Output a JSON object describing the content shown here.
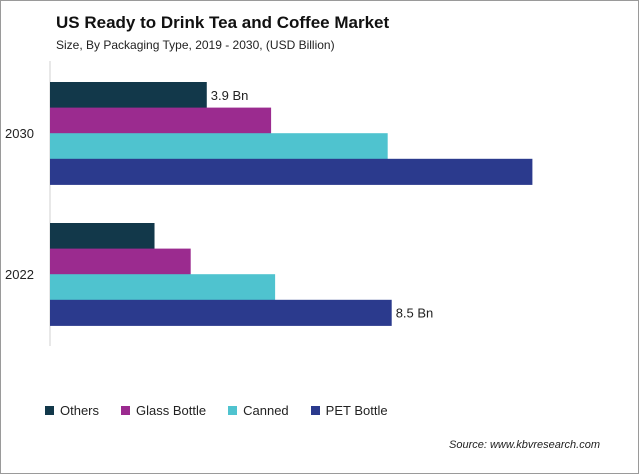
{
  "title": "US Ready to Drink Tea and Coffee  Market",
  "subtitle": "Size, By Packaging Type, 2019 - 2030, (USD Billion)",
  "source": "Source: www.kbvresearch.com",
  "chart_data": {
    "type": "bar",
    "orientation": "horizontal",
    "title": "US Ready to Drink Tea and Coffee  Market",
    "subtitle": "Size, By Packaging Type, 2019 - 2030, (USD Billion)",
    "categories": [
      "2030",
      "2022"
    ],
    "series": [
      {
        "name": "Others",
        "color": "#12384a",
        "values": [
          3.9,
          2.6
        ]
      },
      {
        "name": "Glass Bottle",
        "color": "#9b2b8f",
        "values": [
          5.5,
          3.5
        ]
      },
      {
        "name": "Canned",
        "color": "#4fc3cf",
        "values": [
          8.4,
          5.6
        ]
      },
      {
        "name": "PET Bottle",
        "color": "#2b3a8d",
        "values": [
          12.0,
          8.5
        ]
      }
    ],
    "data_labels": [
      {
        "category": "2030",
        "series": "Others",
        "text": "3.9 Bn"
      },
      {
        "category": "2022",
        "series": "PET Bottle",
        "text": "8.5 Bn"
      }
    ],
    "xlim": [
      0,
      14.5
    ],
    "grid": false,
    "legend": "bottom"
  }
}
